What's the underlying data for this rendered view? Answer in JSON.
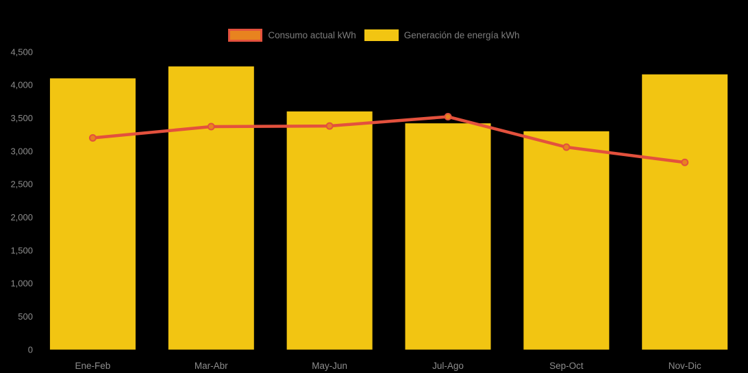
{
  "legend": {
    "items": [
      {
        "label": "Consumo actual kWh",
        "swatch_fill": "#E8831F",
        "swatch_border": "#E3513D"
      },
      {
        "label": "Generación de energía kWh",
        "swatch_fill": "#F2C512"
      }
    ]
  },
  "chart_data": {
    "type": "bar+line",
    "title": "",
    "xlabel": "",
    "ylabel": "",
    "categories": [
      "Ene-Feb",
      "Mar-Abr",
      "May-Jun",
      "Jul-Ago",
      "Sep-Oct",
      "Nov-Dic"
    ],
    "series": [
      {
        "name": "Generación de energía kWh",
        "type": "bar",
        "color": "#F2C512",
        "values": [
          4100,
          4280,
          3600,
          3420,
          3300,
          4160
        ]
      },
      {
        "name": "Consumo actual kWh",
        "type": "line",
        "color": "#E3513D",
        "marker_color": "#E8831F",
        "values": [
          3200,
          3370,
          3380,
          3520,
          3060,
          2830
        ]
      }
    ],
    "ylim": [
      0,
      4500
    ],
    "ytick_step": 500,
    "ytick_labels": [
      "0",
      "500",
      "1,000",
      "1,500",
      "2,000",
      "2,500",
      "3,000",
      "3,500",
      "4,000",
      "4,500"
    ],
    "grid": false,
    "legend_position": "top-center",
    "background": "#000000",
    "axis_text_color": "#8d8d8d"
  }
}
